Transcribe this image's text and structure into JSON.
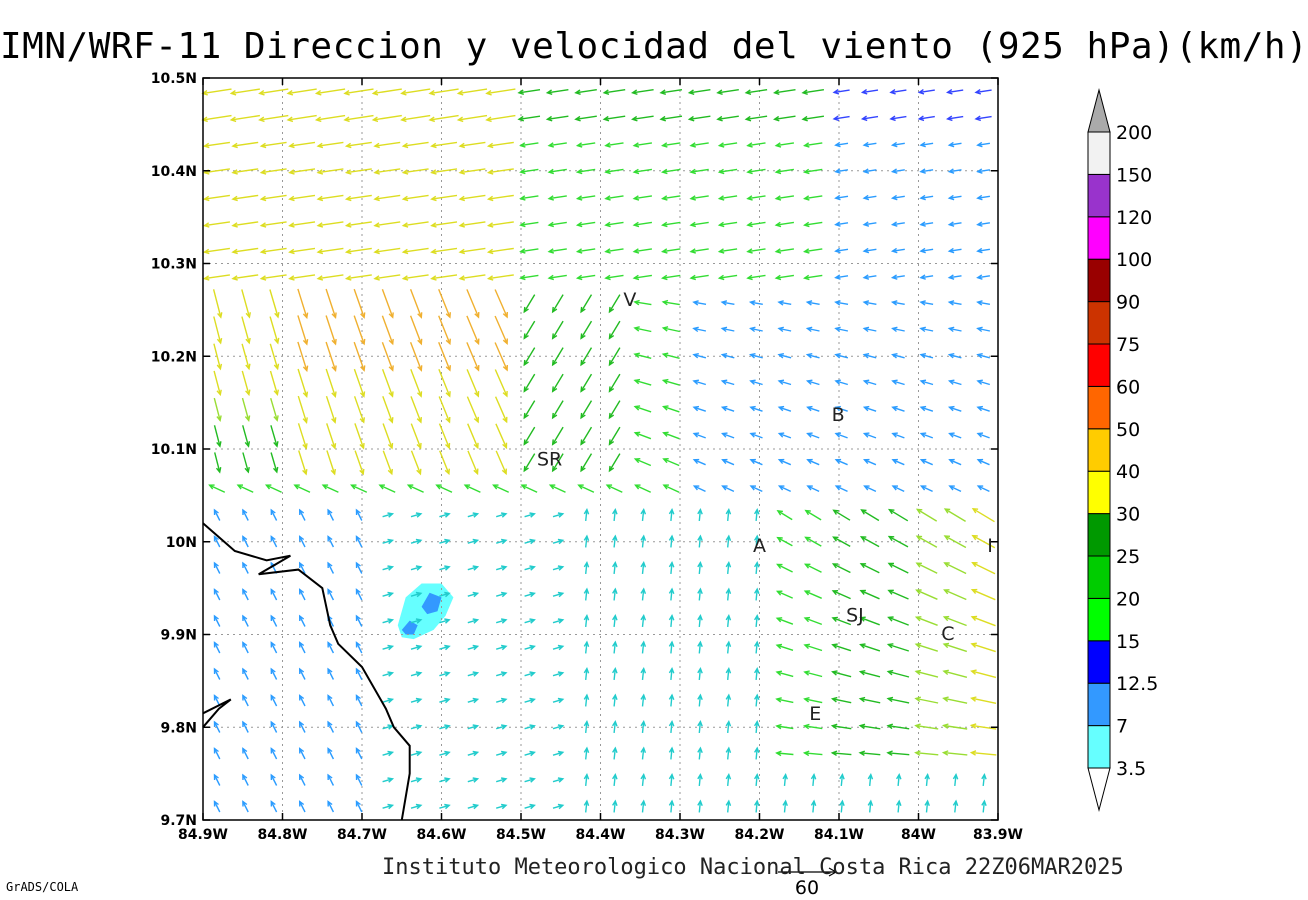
{
  "title": "IMN/WRF-11 Direccion y velocidad del viento (925 hPa)(km/h)",
  "footer": "Instituto Meteorologico Nacional Costa Rica 22Z06MAR2025",
  "software": "GrADS/COLA",
  "reference_vector": {
    "label": "60",
    "value": 60
  },
  "map": {
    "lon_range": [
      -84.9,
      -83.9
    ],
    "lat_range": [
      9.7,
      10.5
    ],
    "grid_dotted": true,
    "lon_ticks": [
      {
        "value": -84.9,
        "label": "84.9W"
      },
      {
        "value": -84.8,
        "label": "84.8W"
      },
      {
        "value": -84.7,
        "label": "84.7W"
      },
      {
        "value": -84.6,
        "label": "84.6W"
      },
      {
        "value": -84.5,
        "label": "84.5W"
      },
      {
        "value": -84.4,
        "label": "84.4W"
      },
      {
        "value": -84.3,
        "label": "84.3W"
      },
      {
        "value": -84.2,
        "label": "84.2W"
      },
      {
        "value": -84.1,
        "label": "84.1W"
      },
      {
        "value": -84.0,
        "label": "84W"
      },
      {
        "value": -83.9,
        "label": "83.9W"
      }
    ],
    "lat_ticks": [
      {
        "value": 10.5,
        "label": "10.5N"
      },
      {
        "value": 10.4,
        "label": "10.4N"
      },
      {
        "value": 10.3,
        "label": "10.3N"
      },
      {
        "value": 10.2,
        "label": "10.2N"
      },
      {
        "value": 10.1,
        "label": "10.1N"
      },
      {
        "value": 10.0,
        "label": "10N"
      },
      {
        "value": 9.9,
        "label": "9.9N"
      },
      {
        "value": 9.8,
        "label": "9.8N"
      },
      {
        "value": 9.7,
        "label": "9.7N"
      }
    ],
    "towns": [
      {
        "label": "V",
        "lon": -84.363,
        "lat": 10.26
      },
      {
        "label": "B",
        "lon": -84.101,
        "lat": 10.136
      },
      {
        "label": "SR",
        "lon": -84.464,
        "lat": 10.088
      },
      {
        "label": "A",
        "lon": -84.2,
        "lat": 9.995
      },
      {
        "label": "I",
        "lon": -83.91,
        "lat": 9.995
      },
      {
        "label": "SJ",
        "lon": -84.08,
        "lat": 9.92
      },
      {
        "label": "C",
        "lon": -83.963,
        "lat": 9.9
      },
      {
        "label": "E",
        "lon": -84.13,
        "lat": 9.814
      }
    ],
    "coastline": [
      [
        [
          -84.9,
          10.02
        ],
        [
          -84.86,
          9.99
        ],
        [
          -84.82,
          9.98
        ],
        [
          -84.79,
          9.985
        ],
        [
          -84.83,
          9.965
        ],
        [
          -84.78,
          9.97
        ],
        [
          -84.75,
          9.95
        ],
        [
          -84.74,
          9.91
        ],
        [
          -84.73,
          9.89
        ],
        [
          -84.7,
          9.865
        ],
        [
          -84.67,
          9.82
        ],
        [
          -84.66,
          9.8
        ],
        [
          -84.64,
          9.78
        ],
        [
          -84.64,
          9.75
        ],
        [
          -84.65,
          9.7
        ]
      ],
      [
        [
          -84.9,
          9.8
        ],
        [
          -84.88,
          9.82
        ],
        [
          -84.865,
          9.83
        ],
        [
          -84.9,
          9.815
        ]
      ]
    ],
    "shaded_regions": [
      {
        "class": "3.5",
        "color": "#66ffff",
        "points": [
          [
            -84.655,
            9.91
          ],
          [
            -84.645,
            9.94
          ],
          [
            -84.625,
            9.955
          ],
          [
            -84.6,
            9.955
          ],
          [
            -84.585,
            9.94
          ],
          [
            -84.595,
            9.92
          ],
          [
            -84.61,
            9.905
          ],
          [
            -84.635,
            9.895
          ],
          [
            -84.65,
            9.897
          ]
        ]
      },
      {
        "class": "7",
        "color": "#3399ff",
        "points": [
          [
            -84.625,
            9.93
          ],
          [
            -84.615,
            9.945
          ],
          [
            -84.6,
            9.94
          ],
          [
            -84.605,
            9.925
          ],
          [
            -84.618,
            9.922
          ]
        ]
      },
      {
        "class": "7",
        "color": "#3399ff",
        "points": [
          [
            -84.65,
            9.905
          ],
          [
            -84.64,
            9.915
          ],
          [
            -84.63,
            9.91
          ],
          [
            -84.635,
            9.9
          ],
          [
            -84.645,
            9.9
          ]
        ]
      }
    ]
  },
  "legend": {
    "levels": [
      {
        "label": "3.5",
        "color": "#66ffff"
      },
      {
        "label": "7",
        "color": "#3399ff"
      },
      {
        "label": "12.5",
        "color": "#0000ff"
      },
      {
        "label": "15",
        "color": "#00ff00"
      },
      {
        "label": "20",
        "color": "#00cc00"
      },
      {
        "label": "25",
        "color": "#009900"
      },
      {
        "label": "30",
        "color": "#ffff00"
      },
      {
        "label": "40",
        "color": "#ffcc00"
      },
      {
        "label": "50",
        "color": "#ff6600"
      },
      {
        "label": "60",
        "color": "#ff0000"
      },
      {
        "label": "75",
        "color": "#cc3300"
      },
      {
        "label": "90",
        "color": "#990000"
      },
      {
        "label": "100",
        "color": "#ff00ff"
      },
      {
        "label": "120",
        "color": "#9933cc"
      },
      {
        "label": "150",
        "color": "#f2f2f2"
      },
      {
        "label": "200",
        "color": "#aaaaaa"
      }
    ],
    "below_min_color": "#ffffff",
    "above_max_color": "#aaaaaa"
  },
  "wind_colors": [
    {
      "min": 0,
      "max": 3.5,
      "color": "#8a2be2"
    },
    {
      "min": 3.5,
      "max": 7,
      "color": "#22cccc"
    },
    {
      "min": 7,
      "max": 12.5,
      "color": "#2b9cff"
    },
    {
      "min": 12.5,
      "max": 15,
      "color": "#3344ff"
    },
    {
      "min": 15,
      "max": 20,
      "color": "#33dd33"
    },
    {
      "min": 20,
      "max": 25,
      "color": "#22bb22"
    },
    {
      "min": 25,
      "max": 30,
      "color": "#99dd33"
    },
    {
      "min": 30,
      "max": 40,
      "color": "#dddd22"
    },
    {
      "min": 40,
      "max": 50,
      "color": "#f0b030"
    },
    {
      "min": 50,
      "max": 60,
      "color": "#f08040"
    },
    {
      "min": 60,
      "max": 999,
      "color": "#ee3344"
    }
  ]
}
